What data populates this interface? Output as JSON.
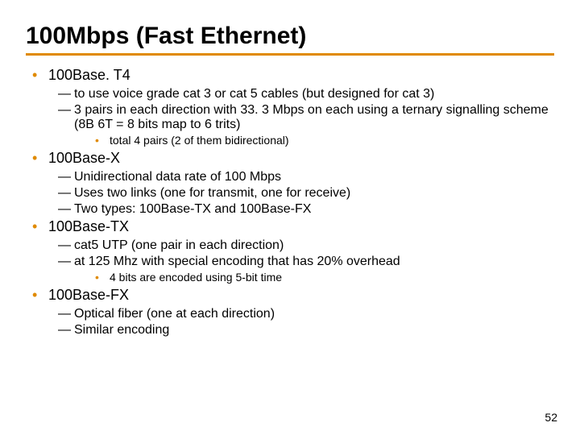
{
  "title": "100Mbps (Fast Ethernet)",
  "title_fontsize": 30,
  "accent_color": "#e08a00",
  "background_color": "#ffffff",
  "text_color": "#000000",
  "pagenum": "52",
  "pagenum_fontsize": 14,
  "lvl1_fontsize": 18,
  "lvl2_fontsize": 16,
  "lvl3_fontsize": 14,
  "items": [
    {
      "level": 1,
      "text": "100Base. T4"
    },
    {
      "level": 2,
      "text": "to use voice grade cat 3 or cat 5 cables (but designed for cat 3)"
    },
    {
      "level": 2,
      "text": "3 pairs in each direction with 33. 3 Mbps on each using a ternary signalling scheme (8B 6T = 8 bits map to 6 trits)"
    },
    {
      "level": 3,
      "text": "total 4 pairs (2 of them bidirectional)"
    },
    {
      "level": 1,
      "text": "100Base-X"
    },
    {
      "level": 2,
      "text": "Unidirectional data rate of 100 Mbps"
    },
    {
      "level": 2,
      "text": "Uses two links (one for transmit, one for receive)"
    },
    {
      "level": 2,
      "text": "Two types: 100Base-TX and 100Base-FX"
    },
    {
      "level": 1,
      "text": "100Base-TX"
    },
    {
      "level": 2,
      "text": "cat5 UTP (one pair in each direction)"
    },
    {
      "level": 2,
      "text": "at 125 Mhz with special encoding that has 20% overhead"
    },
    {
      "level": 3,
      "text": "4 bits are encoded using 5-bit time"
    },
    {
      "level": 1,
      "text": "100Base-FX"
    },
    {
      "level": 2,
      "text": "Optical fiber (one at each direction)"
    },
    {
      "level": 2,
      "text": "Similar encoding"
    }
  ]
}
